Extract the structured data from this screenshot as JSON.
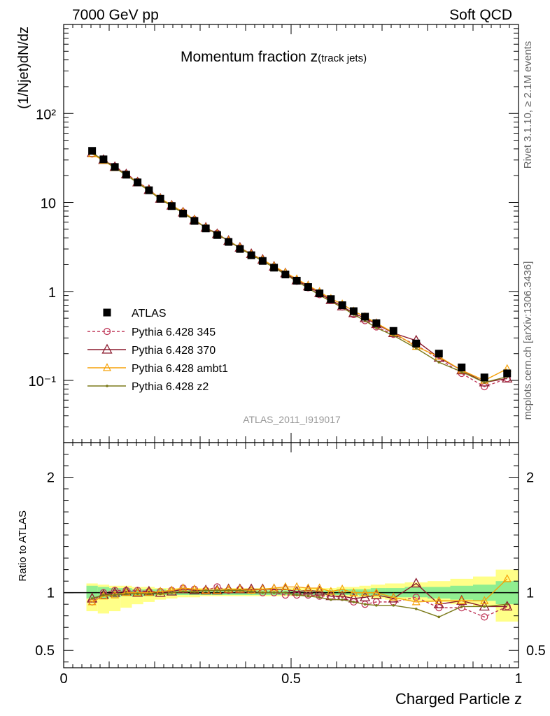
{
  "header": {
    "left": "7000 GeV pp",
    "right": "Soft QCD"
  },
  "side_labels": {
    "rivet": "Rivet 3.1.10, ≥ 2.1M events",
    "source": "mcplots.cern.ch [arXiv:1306.3436]"
  },
  "chart_data": {
    "type": "line",
    "title_main": "Momentum fraction z",
    "title_sub": "(track jets)",
    "analysis_label": "ATLAS_2011_I919017",
    "xlabel": "Charged Particle z",
    "ylabel": "(1/Njet)dN/dz",
    "ratio_ylabel": "Ratio to ATLAS",
    "xlim": [
      0,
      1
    ],
    "ylim": [
      0.02,
      1000
    ],
    "yscale": "log",
    "ratio_ylim": [
      0.35,
      2.3
    ],
    "x_ticks": [
      "0",
      "0.5",
      "1"
    ],
    "y_ticks": [
      "10⁻¹",
      "1",
      "10",
      "10²"
    ],
    "ratio_ticks": [
      "0.5",
      "1",
      "2"
    ],
    "ratio_ticks_right": [
      "0.5",
      "1",
      "2"
    ],
    "legend_position": "middle-left",
    "colors": {
      "atlas": "#000000",
      "p345": "#c0395a",
      "p370": "#8b1a2e",
      "ambt1": "#f5a20a",
      "z2": "#7b7a1a",
      "band_inner": "#90ee90",
      "band_outer": "#ffff88"
    },
    "x": [
      0.0625,
      0.0875,
      0.1125,
      0.1375,
      0.1625,
      0.1875,
      0.2125,
      0.2375,
      0.2625,
      0.2875,
      0.3125,
      0.3375,
      0.3625,
      0.3875,
      0.4125,
      0.4375,
      0.4625,
      0.4875,
      0.5125,
      0.5375,
      0.5625,
      0.5875,
      0.6125,
      0.6375,
      0.6625,
      0.6875,
      0.725,
      0.775,
      0.825,
      0.875,
      0.925,
      0.975
    ],
    "series": [
      {
        "name": "ATLAS",
        "values": [
          38.0,
          30.5,
          25.0,
          20.5,
          16.8,
          13.7,
          11.0,
          9.1,
          7.5,
          6.2,
          5.1,
          4.3,
          3.6,
          3.0,
          2.55,
          2.2,
          1.85,
          1.55,
          1.32,
          1.12,
          0.95,
          0.82,
          0.7,
          0.6,
          0.52,
          0.44,
          0.36,
          0.26,
          0.2,
          0.14,
          0.108,
          0.12
        ]
      },
      {
        "name": "Pythia 6.428 345",
        "values": [
          35.0,
          30.5,
          25.5,
          21.0,
          17.2,
          13.9,
          11.1,
          9.3,
          7.8,
          6.4,
          5.2,
          4.5,
          3.7,
          3.1,
          2.6,
          2.2,
          1.85,
          1.55,
          1.3,
          1.1,
          0.92,
          0.8,
          0.67,
          0.55,
          0.47,
          0.4,
          0.33,
          0.25,
          0.175,
          0.12,
          0.085,
          0.105
        ]
      },
      {
        "name": "Pythia 6.428 370",
        "values": [
          36.0,
          30.0,
          25.0,
          20.7,
          16.8,
          13.8,
          11.0,
          9.2,
          7.7,
          6.3,
          5.2,
          4.4,
          3.7,
          3.1,
          2.63,
          2.27,
          1.9,
          1.6,
          1.33,
          1.14,
          0.96,
          0.8,
          0.68,
          0.57,
          0.5,
          0.43,
          0.34,
          0.28,
          0.18,
          0.13,
          0.095,
          0.105
        ]
      },
      {
        "name": "Pythia 6.428 ambt1",
        "values": [
          35.0,
          29.5,
          24.5,
          20.5,
          16.8,
          13.7,
          11.1,
          9.3,
          7.8,
          6.4,
          5.2,
          4.4,
          3.7,
          3.1,
          2.6,
          2.27,
          1.92,
          1.63,
          1.38,
          1.17,
          0.99,
          0.83,
          0.72,
          0.6,
          0.52,
          0.44,
          0.345,
          0.24,
          0.185,
          0.13,
          0.1,
          0.135
        ]
      },
      {
        "name": "Pythia 6.428 z2",
        "values": [
          36.0,
          30.0,
          24.5,
          20.3,
          16.6,
          13.5,
          10.9,
          9.1,
          7.6,
          6.3,
          5.2,
          4.4,
          3.7,
          3.05,
          2.58,
          2.2,
          1.85,
          1.55,
          1.3,
          1.09,
          0.91,
          0.77,
          0.66,
          0.55,
          0.47,
          0.39,
          0.32,
          0.23,
          0.16,
          0.125,
          0.095,
          0.11
        ]
      }
    ],
    "ratios": [
      {
        "name": "Pythia 6.428 345",
        "values": [
          0.92,
          1.0,
          1.02,
          1.02,
          1.02,
          1.01,
          1.01,
          1.02,
          1.04,
          1.03,
          1.02,
          1.05,
          1.02,
          1.03,
          1.02,
          1.0,
          1.0,
          0.98,
          0.98,
          0.98,
          0.97,
          0.97,
          0.96,
          0.92,
          0.9,
          0.92,
          0.92,
          0.96,
          0.87,
          0.87,
          0.79,
          0.88
        ]
      },
      {
        "name": "Pythia 6.428 370",
        "values": [
          0.95,
          0.98,
          1.0,
          1.01,
          1.0,
          1.01,
          1.0,
          1.01,
          1.03,
          1.02,
          1.02,
          1.02,
          1.03,
          1.03,
          1.03,
          1.03,
          1.03,
          1.03,
          1.01,
          1.02,
          1.01,
          0.97,
          0.97,
          0.95,
          0.96,
          0.98,
          0.95,
          1.08,
          0.9,
          0.93,
          0.88,
          0.88
        ]
      },
      {
        "name": "Pythia 6.428 ambt1",
        "values": [
          0.92,
          0.97,
          0.98,
          1.0,
          1.0,
          1.0,
          1.01,
          1.02,
          1.04,
          1.03,
          1.02,
          1.02,
          1.03,
          1.03,
          1.02,
          1.03,
          1.04,
          1.05,
          1.05,
          1.04,
          1.04,
          1.01,
          1.03,
          1.0,
          1.0,
          1.0,
          0.96,
          0.92,
          0.93,
          0.93,
          0.93,
          1.12
        ]
      },
      {
        "name": "Pythia 6.428 z2",
        "values": [
          0.95,
          0.98,
          0.98,
          0.99,
          0.99,
          0.99,
          0.99,
          1.0,
          1.01,
          1.01,
          1.02,
          1.02,
          1.02,
          1.02,
          1.01,
          1.0,
          1.0,
          1.0,
          0.98,
          0.97,
          0.96,
          0.94,
          0.94,
          0.92,
          0.9,
          0.89,
          0.89,
          0.86,
          0.79,
          0.88,
          0.88,
          0.9
        ]
      }
    ],
    "band_inner": [
      [
        0.95,
        1.06
      ],
      [
        0.95,
        1.05
      ],
      [
        0.96,
        1.04
      ],
      [
        0.97,
        1.04
      ],
      [
        0.97,
        1.03
      ],
      [
        0.97,
        1.03
      ],
      [
        0.98,
        1.03
      ],
      [
        0.98,
        1.02
      ],
      [
        0.98,
        1.02
      ],
      [
        0.98,
        1.02
      ],
      [
        0.98,
        1.02
      ],
      [
        0.98,
        1.02
      ],
      [
        0.98,
        1.02
      ],
      [
        0.98,
        1.02
      ],
      [
        0.98,
        1.02
      ],
      [
        0.98,
        1.02
      ],
      [
        0.98,
        1.02
      ],
      [
        0.98,
        1.02
      ],
      [
        0.98,
        1.02
      ],
      [
        0.98,
        1.02
      ],
      [
        0.98,
        1.02
      ],
      [
        0.98,
        1.02
      ],
      [
        0.98,
        1.03
      ],
      [
        0.98,
        1.03
      ],
      [
        0.97,
        1.03
      ],
      [
        0.97,
        1.04
      ],
      [
        0.96,
        1.04
      ],
      [
        0.96,
        1.05
      ],
      [
        0.95,
        1.05
      ],
      [
        0.94,
        1.06
      ],
      [
        0.93,
        1.07
      ],
      [
        0.9,
        1.1
      ]
    ],
    "band_outer": [
      [
        0.84,
        1.08
      ],
      [
        0.82,
        1.07
      ],
      [
        0.84,
        1.06
      ],
      [
        0.87,
        1.06
      ],
      [
        0.9,
        1.05
      ],
      [
        0.92,
        1.05
      ],
      [
        0.94,
        1.04
      ],
      [
        0.95,
        1.04
      ],
      [
        0.96,
        1.04
      ],
      [
        0.96,
        1.04
      ],
      [
        0.97,
        1.04
      ],
      [
        0.97,
        1.04
      ],
      [
        0.97,
        1.04
      ],
      [
        0.97,
        1.04
      ],
      [
        0.97,
        1.04
      ],
      [
        0.97,
        1.04
      ],
      [
        0.97,
        1.04
      ],
      [
        0.97,
        1.04
      ],
      [
        0.97,
        1.04
      ],
      [
        0.97,
        1.04
      ],
      [
        0.97,
        1.04
      ],
      [
        0.97,
        1.04
      ],
      [
        0.96,
        1.05
      ],
      [
        0.96,
        1.05
      ],
      [
        0.96,
        1.06
      ],
      [
        0.95,
        1.07
      ],
      [
        0.94,
        1.08
      ],
      [
        0.93,
        1.09
      ],
      [
        0.92,
        1.1
      ],
      [
        0.9,
        1.12
      ],
      [
        0.88,
        1.14
      ],
      [
        0.75,
        1.2
      ]
    ]
  }
}
